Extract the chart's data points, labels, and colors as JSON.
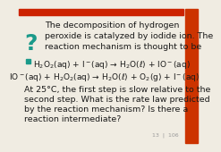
{
  "bg_color": "#f0ece2",
  "title_color": "#1a1a1a",
  "question_mark_color": "#1a9a8a",
  "text_lines": [
    "The decomposition of hydrogen",
    "peroxide is catalyzed by iodide ion. The",
    "reaction mechanism is thought to be"
  ],
  "eq1": "H$_2$O$_2$(aq) + I$^-$(aq) → H$_2$O(ℓ) + IO$^-$(aq)",
  "eq2": "IO$^-$(aq) + H$_2$O$_2$(aq) → H$_2$O(ℓ) + O$_2$(g) + I$^-$(aq)",
  "question_text": [
    "At 25°C, the first step is slow relative to the",
    "second step. What is the rate law predicted",
    "by the reaction mechanism? Is there a",
    "reaction intermediate?"
  ],
  "footer": "13  |  106",
  "top_bar_color": "#cc2200",
  "right_bar_color": "#cc3300",
  "text_fontsize": 6.8,
  "eq_fontsize": 6.5,
  "footer_fontsize": 4.5,
  "qmark_fontsize": 18
}
